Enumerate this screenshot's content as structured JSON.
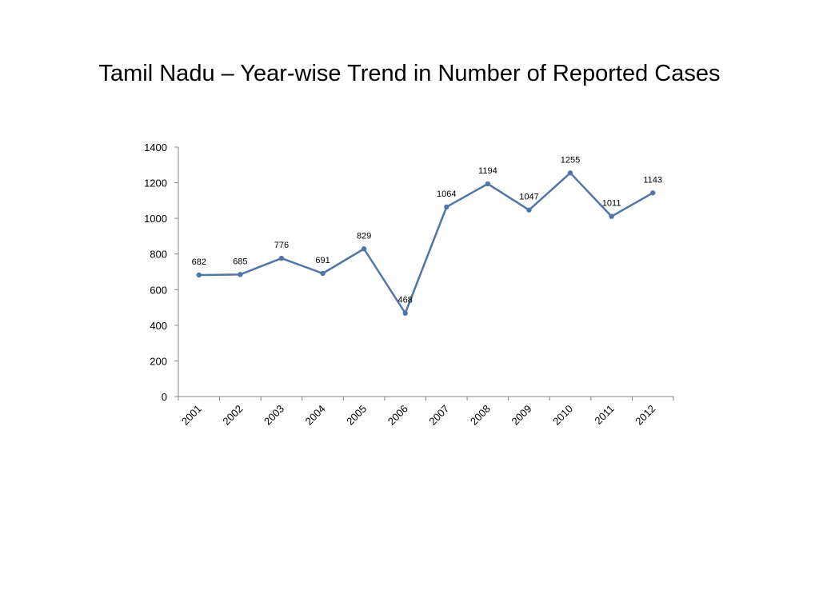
{
  "slide": {
    "title": "Tamil Nadu – Year-wise Trend in Number of Reported Cases"
  },
  "chart_data": {
    "type": "line",
    "title": "",
    "xlabel": "",
    "ylabel": "",
    "categories": [
      "2001",
      "2002",
      "2003",
      "2004",
      "2005",
      "2006",
      "2007",
      "2008",
      "2009",
      "2010",
      "2011",
      "2012"
    ],
    "series": [
      {
        "values": [
          682,
          685,
          776,
          691,
          829,
          468,
          1064,
          1194,
          1047,
          1255,
          1011,
          1143
        ],
        "color": "#4f76a6"
      }
    ],
    "ylim": [
      0,
      1400
    ],
    "yticks": [
      0,
      200,
      400,
      600,
      800,
      1000,
      1200,
      1400
    ],
    "grid": false,
    "legend": "none",
    "data_labels": true
  }
}
